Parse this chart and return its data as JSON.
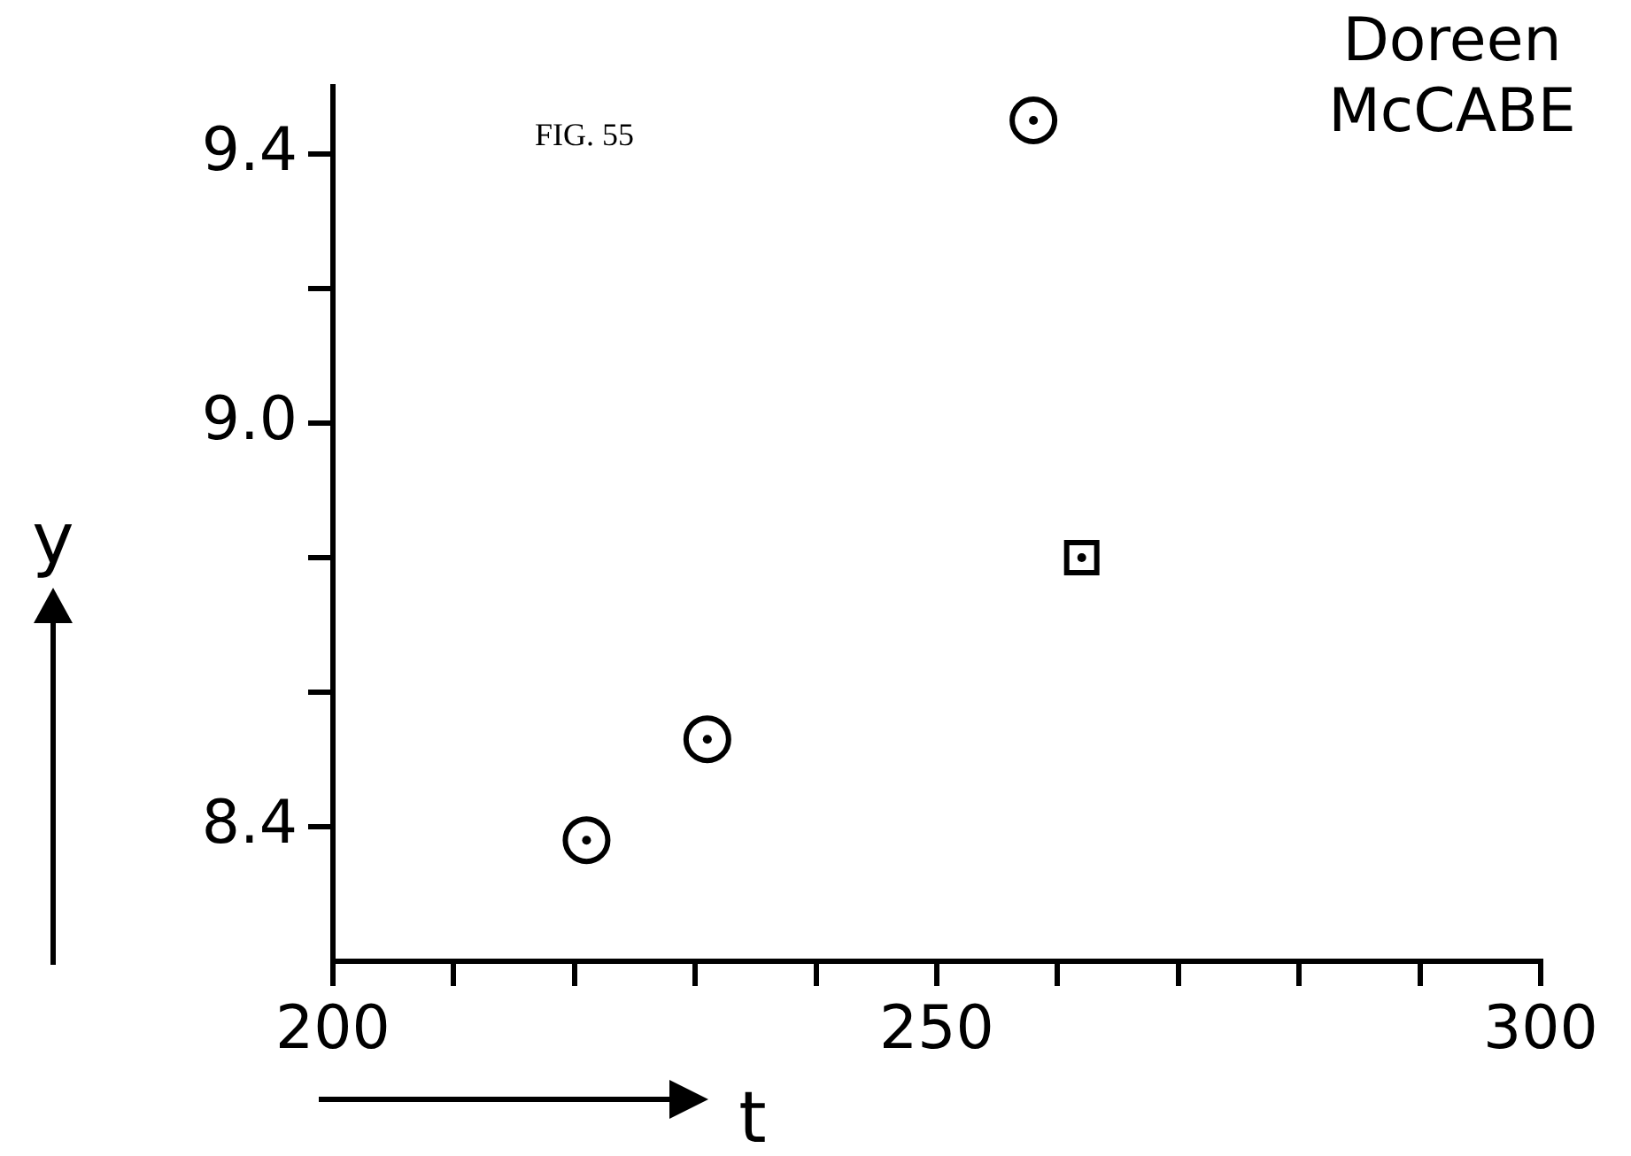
{
  "chart_data": {
    "type": "scatter",
    "title": "Doreen McCABE",
    "xlabel": "t",
    "ylabel": "y",
    "annotations": [
      "FIG. 55"
    ],
    "series": [
      {
        "color": "#000000",
        "marker": "circle",
        "x": [
          221,
          231,
          258
        ],
        "values": [
          8.38,
          8.53,
          9.45
        ]
      },
      {
        "color": "#000000",
        "marker": "square",
        "x": [
          262
        ],
        "values": [
          8.8
        ]
      }
    ],
    "xlim": [
      200,
      300
    ],
    "xticks": [
      200,
      {
        "value": 210,
        "label": null
      },
      {
        "value": 220,
        "label": null
      },
      {
        "value": 230,
        "label": null
      },
      {
        "value": 240,
        "label": null
      },
      250,
      {
        "value": 260,
        "label": null
      },
      {
        "value": 270,
        "label": null
      },
      {
        "value": 280,
        "label": null
      },
      {
        "value": 290,
        "label": null
      },
      300
    ],
    "ylim": [
      8.2,
      9.5
    ],
    "yticks": [
      8.4,
      {
        "value": 8.6,
        "label": null
      },
      {
        "value": 8.8,
        "label": null
      },
      {
        "value": 9.0,
        "label": "9.0"
      },
      {
        "value": 9.2,
        "label": null
      },
      9.4
    ],
    "grid": false,
    "legend": false
  }
}
